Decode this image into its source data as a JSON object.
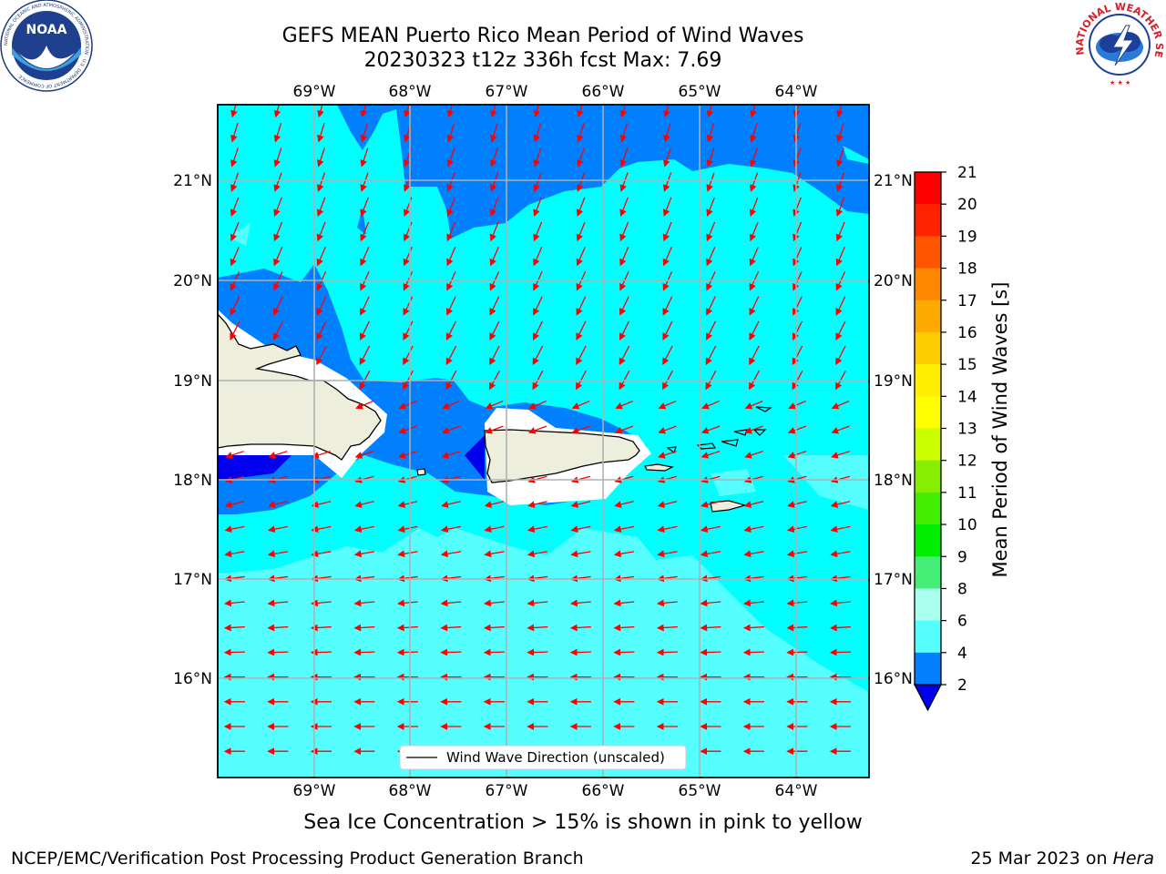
{
  "header": {
    "title_line1": "GEFS MEAN Puerto Rico Mean Period of Wind Waves",
    "title_line2": "20230323 t12z 336h fcst   Max: 7.69"
  },
  "logos": {
    "left": "NOAA",
    "left_ring": "NATIONAL OCEANIC AND ATMOSPHERIC ADMINISTRATION · U.S. DEPARTMENT OF COMMERCE",
    "right_ring": "NATIONAL WEATHER SERVICE",
    "left_icon": "noaa-logo",
    "right_icon": "nws-logo"
  },
  "map": {
    "lon_labels": [
      "69°W",
      "68°W",
      "67°W",
      "66°W",
      "65°W",
      "64°W"
    ],
    "lat_labels": [
      "21°N",
      "20°N",
      "19°N",
      "18°N",
      "17°N",
      "16°N"
    ],
    "legend_label": "Wind Wave Direction (unscaled)",
    "colors": {
      "ocean_light": "#55ffff",
      "ocean_cyan": "#00ffff",
      "ocean_blue": "#0080ff",
      "ocean_dark": "#0000ee",
      "land": "#eeeedd",
      "arrow": "#ff0000",
      "grid": "#b0b0b0"
    }
  },
  "colorbar": {
    "label": "Mean Period of Wind Waves [s]",
    "ticks": [
      "21",
      "20",
      "19",
      "18",
      "17",
      "16",
      "15",
      "14",
      "13",
      "12",
      "11",
      "10",
      "9",
      "8",
      "6",
      "4",
      "2"
    ],
    "colors_top_to_bottom": [
      "#ff0000",
      "#ff2200",
      "#ff5500",
      "#ff8800",
      "#ffaa00",
      "#ffcc00",
      "#ffee00",
      "#ffff00",
      "#eeff00",
      "#ccff00",
      "#88ee00",
      "#44dd00",
      "#00ee00",
      "#44ee77",
      "#55ff99",
      "#aaffee",
      "#55ffff",
      "#00ffff",
      "#0080ff"
    ],
    "under_color": "#0000ee"
  },
  "subnote": "Sea Ice Concentration > 15% is shown in pink to yellow",
  "footer": {
    "left": "NCEP/EMC/Verification Post Processing Product Generation Branch",
    "right_prefix": "25 Mar 2023 on ",
    "right_machine": "Hera"
  }
}
